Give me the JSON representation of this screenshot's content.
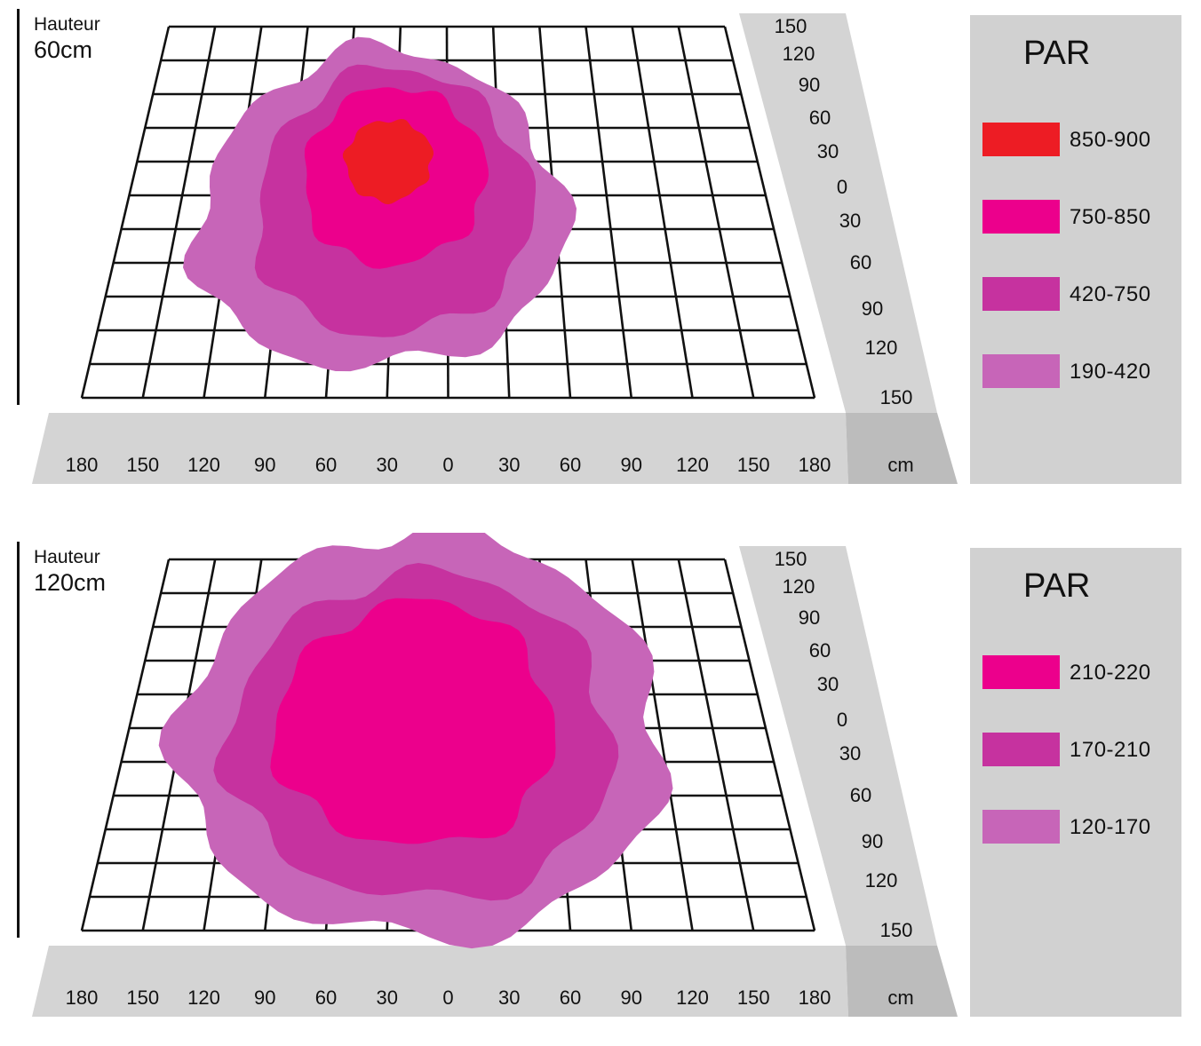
{
  "chart_data": [
    {
      "type": "heatmap",
      "title": "",
      "height_word": "Hauteur",
      "height_value": "60cm",
      "x_ticks": [
        "180",
        "150",
        "120",
        "90",
        "60",
        "30",
        "0",
        "30",
        "60",
        "90",
        "120",
        "150",
        "180"
      ],
      "y_ticks": [
        "150",
        "120",
        "90",
        "60",
        "30",
        "0",
        "30",
        "60",
        "90",
        "120",
        "150"
      ],
      "unit": "cm",
      "legend_title": "PAR",
      "levels": [
        {
          "label": "850-900",
          "color": "#ed1c24"
        },
        {
          "label": "750-850",
          "color": "#ec008c"
        },
        {
          "label": "420-750",
          "color": "#c6329f"
        },
        {
          "label": "190-420",
          "color": "#c765b8"
        }
      ]
    },
    {
      "type": "heatmap",
      "title": "",
      "height_word": "Hauteur",
      "height_value": "120cm",
      "x_ticks": [
        "180",
        "150",
        "120",
        "90",
        "60",
        "30",
        "0",
        "30",
        "60",
        "90",
        "120",
        "150",
        "180"
      ],
      "y_ticks": [
        "150",
        "120",
        "90",
        "60",
        "30",
        "0",
        "30",
        "60",
        "90",
        "120",
        "150"
      ],
      "unit": "cm",
      "legend_title": "PAR",
      "levels": [
        {
          "label": "210-220",
          "color": "#ec008c"
        },
        {
          "label": "170-210",
          "color": "#c6329f"
        },
        {
          "label": "120-170",
          "color": "#c765b8"
        }
      ]
    }
  ]
}
